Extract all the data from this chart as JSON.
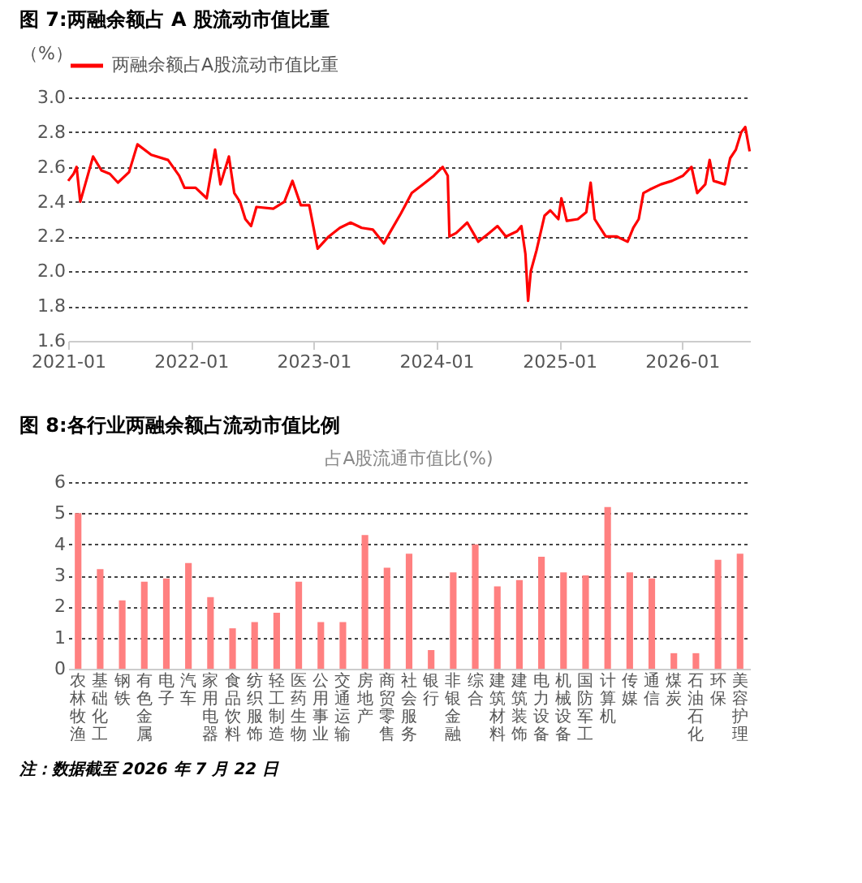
{
  "chart_data": [
    {
      "type": "line",
      "title": "图 7:两融余额占 A 股流动市值比重",
      "ylabel": "（%）",
      "x": [
        "2021-01-01",
        "2021-01-17",
        "2021-01-26",
        "2021-02-06",
        "2021-02-28",
        "2021-03-16",
        "2021-04-10",
        "2021-05-05",
        "2021-05-29",
        "2021-07-01",
        "2021-07-26",
        "2021-09-05",
        "2021-10-25",
        "2021-11-27",
        "2021-12-13",
        "2022-01-15",
        "2022-02-17",
        "2022-03-14",
        "2022-03-30",
        "2022-04-24",
        "2022-05-10",
        "2022-05-27",
        "2022-06-12",
        "2022-06-29",
        "2022-07-15",
        "2022-09-03",
        "2022-10-06",
        "2022-10-30",
        "2022-11-24",
        "2022-12-19",
        "2023-01-13",
        "2023-02-15",
        "2023-03-20",
        "2023-04-21",
        "2023-05-24",
        "2023-06-26",
        "2023-07-29",
        "2023-08-15",
        "2023-09-17",
        "2023-10-20",
        "2023-11-22",
        "2023-12-25",
        "2024-01-20",
        "2024-02-04",
        "2024-02-09",
        "2024-02-29",
        "2024-04-02",
        "2024-05-05",
        "2024-06-06",
        "2024-07-01",
        "2024-07-26",
        "2024-08-28",
        "2024-09-10",
        "2024-09-22",
        "2024-09-30",
        "2024-10-08",
        "2024-10-25",
        "2024-11-18",
        "2024-12-05",
        "2024-12-29",
        "2025-01-07",
        "2025-01-23",
        "2025-02-25",
        "2025-03-22",
        "2025-04-04",
        "2025-04-16",
        "2025-05-19",
        "2025-06-21",
        "2025-07-23",
        "2025-08-09",
        "2025-08-25",
        "2025-09-08",
        "2025-09-27",
        "2025-10-30",
        "2025-12-02",
        "2026-01-04",
        "2026-01-29",
        "2026-02-15",
        "2026-03-11",
        "2026-03-24",
        "2026-04-05",
        "2026-05-08",
        "2026-05-24",
        "2026-06-10",
        "2026-06-26",
        "2026-07-08",
        "2026-07-21"
      ],
      "series": [
        {
          "name": "两融余额占A股流动市值比重",
          "color": "#ff0000",
          "values": [
            2.52,
            2.56,
            2.6,
            2.4,
            2.55,
            2.66,
            2.58,
            2.56,
            2.51,
            2.57,
            2.73,
            2.67,
            2.64,
            2.55,
            2.48,
            2.48,
            2.42,
            2.7,
            2.5,
            2.66,
            2.45,
            2.4,
            2.3,
            2.26,
            2.37,
            2.36,
            2.4,
            2.52,
            2.38,
            2.38,
            2.13,
            2.2,
            2.25,
            2.28,
            2.25,
            2.24,
            2.16,
            2.22,
            2.33,
            2.45,
            2.5,
            2.55,
            2.6,
            2.55,
            2.2,
            2.22,
            2.28,
            2.17,
            2.22,
            2.26,
            2.2,
            2.23,
            2.26,
            2.1,
            1.83,
            2.0,
            2.12,
            2.32,
            2.35,
            2.3,
            2.42,
            2.29,
            2.3,
            2.34,
            2.51,
            2.3,
            2.2,
            2.2,
            2.17,
            2.25,
            2.3,
            2.45,
            2.47,
            2.5,
            2.52,
            2.55,
            2.6,
            2.45,
            2.5,
            2.64,
            2.52,
            2.5,
            2.65,
            2.7,
            2.8,
            2.83,
            2.69
          ]
        }
      ],
      "xlim": [
        "2021-01-01",
        "2026-07-22"
      ],
      "xticks": [
        "2021-01",
        "2022-01",
        "2023-01",
        "2024-01",
        "2025-01",
        "2026-01"
      ],
      "ylim": [
        1.6,
        3.0
      ],
      "yticks": [
        1.6,
        1.8,
        {
          "value": 2,
          "label": "2.0"
        },
        2.2,
        2.4,
        2.6,
        2.8,
        {
          "value": 3,
          "label": "3.0"
        }
      ],
      "grid": "y",
      "legend": "top",
      "line_style": "solid"
    },
    {
      "type": "bar",
      "title": "图 8:各行业两融余额占流动市值比例",
      "subtitle": "占A股流通市值比(%)",
      "categories": [
        "农林牧渔",
        "基础化工",
        "钢铁",
        "有色金属",
        "电子",
        "汽车",
        "家用电器",
        "食品饮料",
        "纺织服饰",
        "轻工制造",
        "医药生物",
        "公用事业",
        "交通运输",
        "房地产",
        "商贸零售",
        "社会服务",
        "银行",
        "非银金融",
        "综合",
        "建筑材料",
        "建筑装饰",
        "电力设备",
        "机械设备",
        "国防军工",
        "计算机",
        "传媒",
        "通信",
        "煤炭",
        "石油石化",
        "环保",
        "美容护理"
      ],
      "series": [
        {
          "color": "#ff8080",
          "values": [
            5.0,
            3.2,
            2.2,
            2.8,
            2.9,
            3.4,
            2.3,
            1.3,
            1.5,
            1.8,
            2.8,
            1.5,
            1.5,
            4.3,
            3.25,
            3.7,
            0.6,
            3.1,
            4.0,
            2.65,
            2.85,
            3.6,
            3.1,
            3.0,
            5.2,
            3.1,
            2.9,
            0.5,
            0.5,
            3.5,
            3.7
          ]
        }
      ],
      "ylim": [
        0,
        6
      ],
      "yticks": [
        0,
        1,
        2,
        3,
        4,
        5,
        6
      ],
      "grid": "y",
      "annotations": [
        "注：数据截至 2026 年 7 月 22 日"
      ]
    }
  ]
}
